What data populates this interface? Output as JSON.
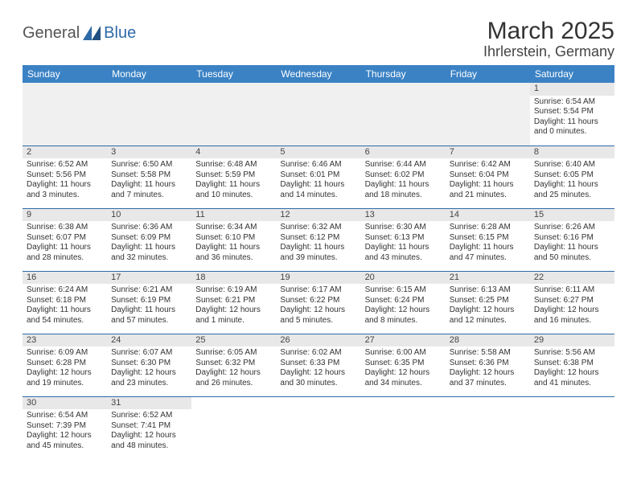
{
  "logo": {
    "textA": "General",
    "textB": "Blue",
    "triColor": "#2e6aa8"
  },
  "title": {
    "month": "March 2025",
    "location": "Ihrlerstein, Germany"
  },
  "colors": {
    "headerBg": "#3b82c4",
    "headerText": "#ffffff",
    "rule": "#2e6aa8",
    "daynumBg": "#e8e8e8"
  },
  "dayHeaders": [
    "Sunday",
    "Monday",
    "Tuesday",
    "Wednesday",
    "Thursday",
    "Friday",
    "Saturday"
  ],
  "weeks": [
    [
      null,
      null,
      null,
      null,
      null,
      null,
      {
        "n": "1",
        "sr": "Sunrise: 6:54 AM",
        "ss": "Sunset: 5:54 PM",
        "dl": "Daylight: 11 hours and 0 minutes."
      }
    ],
    [
      {
        "n": "2",
        "sr": "Sunrise: 6:52 AM",
        "ss": "Sunset: 5:56 PM",
        "dl": "Daylight: 11 hours and 3 minutes."
      },
      {
        "n": "3",
        "sr": "Sunrise: 6:50 AM",
        "ss": "Sunset: 5:58 PM",
        "dl": "Daylight: 11 hours and 7 minutes."
      },
      {
        "n": "4",
        "sr": "Sunrise: 6:48 AM",
        "ss": "Sunset: 5:59 PM",
        "dl": "Daylight: 11 hours and 10 minutes."
      },
      {
        "n": "5",
        "sr": "Sunrise: 6:46 AM",
        "ss": "Sunset: 6:01 PM",
        "dl": "Daylight: 11 hours and 14 minutes."
      },
      {
        "n": "6",
        "sr": "Sunrise: 6:44 AM",
        "ss": "Sunset: 6:02 PM",
        "dl": "Daylight: 11 hours and 18 minutes."
      },
      {
        "n": "7",
        "sr": "Sunrise: 6:42 AM",
        "ss": "Sunset: 6:04 PM",
        "dl": "Daylight: 11 hours and 21 minutes."
      },
      {
        "n": "8",
        "sr": "Sunrise: 6:40 AM",
        "ss": "Sunset: 6:05 PM",
        "dl": "Daylight: 11 hours and 25 minutes."
      }
    ],
    [
      {
        "n": "9",
        "sr": "Sunrise: 6:38 AM",
        "ss": "Sunset: 6:07 PM",
        "dl": "Daylight: 11 hours and 28 minutes."
      },
      {
        "n": "10",
        "sr": "Sunrise: 6:36 AM",
        "ss": "Sunset: 6:09 PM",
        "dl": "Daylight: 11 hours and 32 minutes."
      },
      {
        "n": "11",
        "sr": "Sunrise: 6:34 AM",
        "ss": "Sunset: 6:10 PM",
        "dl": "Daylight: 11 hours and 36 minutes."
      },
      {
        "n": "12",
        "sr": "Sunrise: 6:32 AM",
        "ss": "Sunset: 6:12 PM",
        "dl": "Daylight: 11 hours and 39 minutes."
      },
      {
        "n": "13",
        "sr": "Sunrise: 6:30 AM",
        "ss": "Sunset: 6:13 PM",
        "dl": "Daylight: 11 hours and 43 minutes."
      },
      {
        "n": "14",
        "sr": "Sunrise: 6:28 AM",
        "ss": "Sunset: 6:15 PM",
        "dl": "Daylight: 11 hours and 47 minutes."
      },
      {
        "n": "15",
        "sr": "Sunrise: 6:26 AM",
        "ss": "Sunset: 6:16 PM",
        "dl": "Daylight: 11 hours and 50 minutes."
      }
    ],
    [
      {
        "n": "16",
        "sr": "Sunrise: 6:24 AM",
        "ss": "Sunset: 6:18 PM",
        "dl": "Daylight: 11 hours and 54 minutes."
      },
      {
        "n": "17",
        "sr": "Sunrise: 6:21 AM",
        "ss": "Sunset: 6:19 PM",
        "dl": "Daylight: 11 hours and 57 minutes."
      },
      {
        "n": "18",
        "sr": "Sunrise: 6:19 AM",
        "ss": "Sunset: 6:21 PM",
        "dl": "Daylight: 12 hours and 1 minute."
      },
      {
        "n": "19",
        "sr": "Sunrise: 6:17 AM",
        "ss": "Sunset: 6:22 PM",
        "dl": "Daylight: 12 hours and 5 minutes."
      },
      {
        "n": "20",
        "sr": "Sunrise: 6:15 AM",
        "ss": "Sunset: 6:24 PM",
        "dl": "Daylight: 12 hours and 8 minutes."
      },
      {
        "n": "21",
        "sr": "Sunrise: 6:13 AM",
        "ss": "Sunset: 6:25 PM",
        "dl": "Daylight: 12 hours and 12 minutes."
      },
      {
        "n": "22",
        "sr": "Sunrise: 6:11 AM",
        "ss": "Sunset: 6:27 PM",
        "dl": "Daylight: 12 hours and 16 minutes."
      }
    ],
    [
      {
        "n": "23",
        "sr": "Sunrise: 6:09 AM",
        "ss": "Sunset: 6:28 PM",
        "dl": "Daylight: 12 hours and 19 minutes."
      },
      {
        "n": "24",
        "sr": "Sunrise: 6:07 AM",
        "ss": "Sunset: 6:30 PM",
        "dl": "Daylight: 12 hours and 23 minutes."
      },
      {
        "n": "25",
        "sr": "Sunrise: 6:05 AM",
        "ss": "Sunset: 6:32 PM",
        "dl": "Daylight: 12 hours and 26 minutes."
      },
      {
        "n": "26",
        "sr": "Sunrise: 6:02 AM",
        "ss": "Sunset: 6:33 PM",
        "dl": "Daylight: 12 hours and 30 minutes."
      },
      {
        "n": "27",
        "sr": "Sunrise: 6:00 AM",
        "ss": "Sunset: 6:35 PM",
        "dl": "Daylight: 12 hours and 34 minutes."
      },
      {
        "n": "28",
        "sr": "Sunrise: 5:58 AM",
        "ss": "Sunset: 6:36 PM",
        "dl": "Daylight: 12 hours and 37 minutes."
      },
      {
        "n": "29",
        "sr": "Sunrise: 5:56 AM",
        "ss": "Sunset: 6:38 PM",
        "dl": "Daylight: 12 hours and 41 minutes."
      }
    ],
    [
      {
        "n": "30",
        "sr": "Sunrise: 6:54 AM",
        "ss": "Sunset: 7:39 PM",
        "dl": "Daylight: 12 hours and 45 minutes."
      },
      {
        "n": "31",
        "sr": "Sunrise: 6:52 AM",
        "ss": "Sunset: 7:41 PM",
        "dl": "Daylight: 12 hours and 48 minutes."
      },
      null,
      null,
      null,
      null,
      null
    ]
  ]
}
